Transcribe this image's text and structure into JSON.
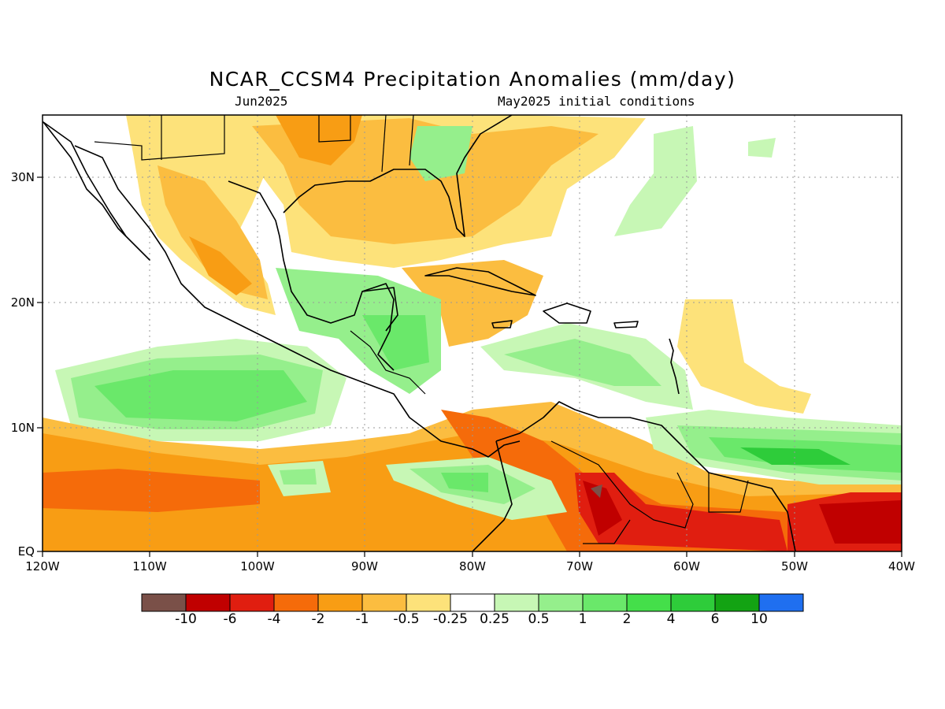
{
  "title": "NCAR_CCSM4 Precipitation Anomalies (mm/day)",
  "subtitle_left": "Jun2025",
  "subtitle_right": "May2025 initial conditions",
  "map": {
    "region": "Caribbean / Central America",
    "lon_range": [
      -120,
      -40
    ],
    "lat_range": [
      0,
      35
    ],
    "lat_labels": [
      "EQ",
      "10N",
      "20N",
      "30N"
    ],
    "lon_labels": [
      "120W",
      "110W",
      "100W",
      "90W",
      "80W",
      "70W",
      "60W",
      "50W",
      "40W"
    ],
    "gridlines": "dotted"
  },
  "colorbar": {
    "labels": [
      "-10",
      "-6",
      "-4",
      "-2",
      "-1",
      "-0.5",
      "-0.25",
      "0.25",
      "0.5",
      "1",
      "2",
      "4",
      "6",
      "10"
    ],
    "colors": [
      "#7a5048",
      "#c00000",
      "#e01e10",
      "#f56b0a",
      "#f89d14",
      "#fbbd40",
      "#fde27a",
      "#ffffff",
      "#c7f7b5",
      "#95ef8c",
      "#6ae86a",
      "#44df4a",
      "#2ecc3a",
      "#13a313",
      "#1f6ff0"
    ]
  }
}
